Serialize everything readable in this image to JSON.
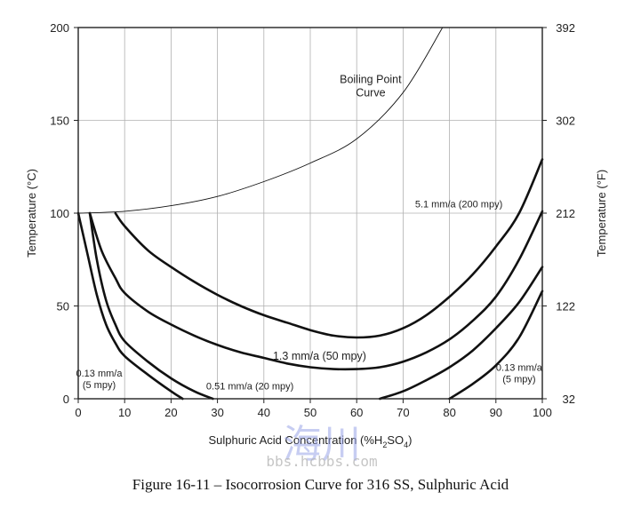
{
  "caption": "Figure 16-11 – Isocorrosion Curve for 316 SS, Sulphuric Acid",
  "watermark": {
    "chars": "海川",
    "url": "bbs.hcbbs.com"
  },
  "chart_data": {
    "type": "line",
    "xlabel": "Sulphuric Acid Concentration (%H2SO4)",
    "xlabel_parts": {
      "main": "Sulphuric Acid Concentration (%H",
      "sub1": "2",
      "mid": "SO",
      "sub2": "4",
      "end": ")"
    },
    "ylabel_left": "Temperature (°C)",
    "ylabel_right": "Temperature (°F)",
    "xlim": [
      0,
      100
    ],
    "ylim": [
      0,
      200
    ],
    "x_ticks": [
      "0",
      "10",
      "20",
      "30",
      "40",
      "50",
      "60",
      "70",
      "80",
      "90",
      "100"
    ],
    "y_ticks_left": [
      "0",
      "50",
      "100",
      "150",
      "200"
    ],
    "y_ticks_right": [
      "32",
      "122",
      "212",
      "302",
      "392"
    ],
    "grid": true,
    "series": [
      {
        "name": "Boiling Point Curve",
        "style": "thin",
        "x": [
          0,
          10,
          20,
          30,
          40,
          50,
          60,
          70,
          78.5
        ],
        "y": [
          100,
          101,
          104,
          109,
          117,
          127,
          140,
          165,
          200
        ]
      },
      {
        "name": "5.1 mm/a (200 mpy)",
        "style": "thick",
        "x": [
          8,
          10,
          15,
          20,
          25,
          30,
          35,
          40,
          45,
          50,
          55,
          60,
          65,
          70,
          75,
          80,
          85,
          90,
          95,
          100
        ],
        "y": [
          100,
          93,
          80,
          71,
          63,
          56,
          50,
          45,
          41,
          37,
          34,
          33,
          34,
          38,
          45,
          55,
          67,
          82,
          100,
          129
        ]
      },
      {
        "name": "1.3 mm/a (50 mpy)",
        "style": "thick",
        "x": [
          2.5,
          5,
          8,
          10,
          15,
          20,
          25,
          30,
          35,
          40,
          45,
          50,
          55,
          60,
          65,
          70,
          75,
          80,
          85,
          90,
          95,
          100
        ],
        "y": [
          100,
          80,
          65,
          57,
          47,
          40,
          34,
          29,
          25,
          22,
          19,
          17,
          16,
          16,
          17,
          20,
          25,
          32,
          42,
          55,
          75,
          101
        ]
      },
      {
        "name": "0.51 mm/a (20 mpy)",
        "style": "thick",
        "x": [
          2.5,
          4,
          6,
          8,
          10,
          15,
          20,
          25,
          29
        ],
        "y": [
          100,
          75,
          53,
          40,
          31,
          20,
          11,
          4,
          0
        ]
      },
      {
        "name": "0.51 mm/a (20 mpy) - right branch",
        "style": "thick",
        "x": [
          65,
          70,
          75,
          80,
          85,
          90,
          95,
          100
        ],
        "y": [
          0,
          4,
          10,
          17,
          26,
          38,
          52,
          71
        ]
      },
      {
        "name": "0.13 mm/a (5 mpy)",
        "style": "thick",
        "x": [
          0,
          2,
          4,
          6,
          8,
          10,
          15,
          20,
          22.5
        ],
        "y": [
          100,
          78,
          56,
          40,
          30,
          23,
          13,
          4,
          0
        ]
      },
      {
        "name": "0.13 mm/a (5 mpy) - right branch",
        "style": "thick",
        "x": [
          80,
          85,
          90,
          95,
          100
        ],
        "y": [
          0,
          8,
          18,
          33,
          58
        ]
      }
    ],
    "annotations": [
      {
        "id": "boiling",
        "lines": [
          "Boiling Point",
          "Curve"
        ],
        "x": 63,
        "y": 170,
        "size": "large"
      },
      {
        "id": "mpy200",
        "lines": [
          "5.1 mm/a (200 mpy)"
        ],
        "x": 82,
        "y": 103,
        "size": "small"
      },
      {
        "id": "mpy50",
        "lines": [
          "1.3 mm/a (50 mpy)"
        ],
        "x": 52,
        "y": 21,
        "size": "large"
      },
      {
        "id": "mpy20",
        "lines": [
          "0.51 mm/a (20 mpy)"
        ],
        "x": 37,
        "y": 5,
        "size": "small"
      },
      {
        "id": "mpy5left",
        "lines": [
          "0.13 mm/a",
          "(5 mpy)"
        ],
        "x": 4.5,
        "y": 12,
        "size": "small"
      },
      {
        "id": "mpy5right",
        "lines": [
          "0.13 mm/a",
          "(5 mpy)"
        ],
        "x": 95,
        "y": 15,
        "size": "small"
      }
    ]
  }
}
